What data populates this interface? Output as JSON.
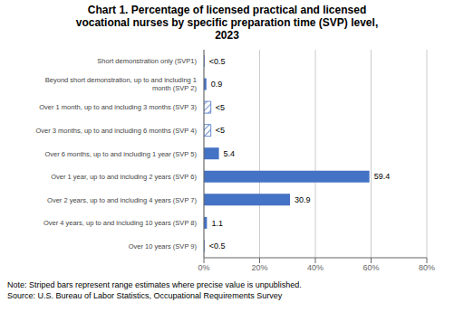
{
  "chart_data": {
    "type": "bar",
    "orientation": "horizontal",
    "title": "Chart 1. Percentage of licensed practical and licensed\nvocational nurses by specific preparation time (SVP) level,\n2023",
    "categories": [
      "Short demonstration only (SVP1)",
      "Beyond short demonstration, up to and including 1\nmonth (SVP 2)",
      "Over 1 month, up to and including 3 months (SVP 3)",
      "Over 3 months, up to and including 6 months (SVP 4)",
      "Over 6 months, up to and including 1 year (SVP 5)",
      "Over 1 year, up to and including 2 years (SVP 6)",
      "Over 2 years, up to and including 4 years (SVP 7)",
      "Over 4 years, up to and including 10 years (SVP 8)",
      "Over 10 years (SVP 9)"
    ],
    "values": [
      0.25,
      0.9,
      2.5,
      2.5,
      5.4,
      59.4,
      30.9,
      1.1,
      0.25
    ],
    "value_labels": [
      "<0.5",
      "0.9",
      "<5",
      "<5",
      "5.4",
      "59.4",
      "30.9",
      "1.1",
      "<0.5"
    ],
    "striped": [
      false,
      false,
      true,
      true,
      false,
      false,
      false,
      false,
      false
    ],
    "data_labels": true,
    "color": "#4472C4",
    "xlim": [
      0,
      80
    ],
    "xticks": [
      {
        "value": 0,
        "label": "0%"
      },
      {
        "value": 20,
        "label": "20%"
      },
      {
        "value": 40,
        "label": "40%"
      },
      {
        "value": 60,
        "label": "60%"
      },
      {
        "value": 80,
        "label": "80%"
      }
    ],
    "grid": true,
    "annotations": [
      "Note: Striped bars represent range estimates where precise value is unpublished.",
      "Source: U.S. Bureau of Labor Statistics, Occupational Requirements Survey"
    ]
  }
}
